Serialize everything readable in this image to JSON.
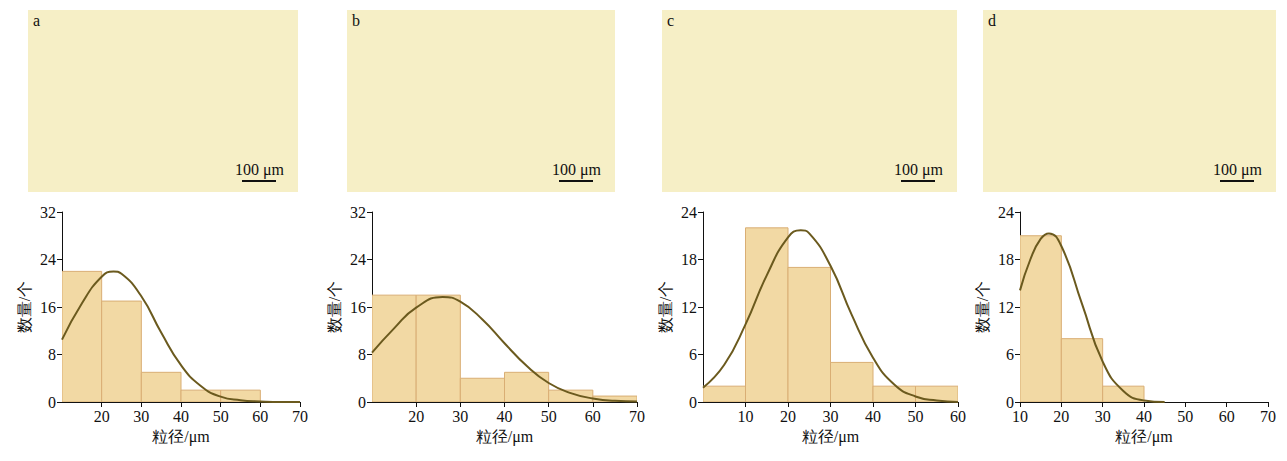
{
  "micrographs": [
    {
      "label": "a",
      "scale_bar": "100 μm"
    },
    {
      "label": "b",
      "scale_bar": "100 μm"
    },
    {
      "label": "c",
      "scale_bar": "100 μm"
    },
    {
      "label": "d",
      "scale_bar": "100 μm"
    }
  ],
  "chart_data": [
    {
      "type": "histogram",
      "xlabel": "粒径/μm",
      "ylabel": "数量/个",
      "color": "#f2d9a4",
      "grid": false,
      "bins": [
        10,
        20,
        30,
        40,
        50,
        60
      ],
      "counts": [
        22,
        17,
        5,
        2,
        2
      ],
      "xlim": [
        10,
        70
      ],
      "xticks": [
        20,
        30,
        40,
        50,
        60,
        70
      ],
      "ylim": [
        0,
        32
      ],
      "yticks": [
        0,
        8,
        16,
        24,
        32
      ],
      "fit": {
        "color": "#6b5a1e",
        "x": [
          10,
          15,
          20,
          23,
          25,
          30,
          35,
          40,
          45,
          50,
          55,
          60,
          65,
          70
        ],
        "y": [
          10.5,
          16.6,
          21.1,
          22.0,
          21.6,
          17.8,
          11.7,
          6.2,
          2.7,
          0.9,
          0.3,
          0.1,
          0.0,
          0.0
        ]
      }
    },
    {
      "type": "histogram",
      "xlabel": "粒径/μm",
      "ylabel": "数量/个",
      "color": "#f2d9a4",
      "grid": false,
      "bins": [
        10,
        20,
        30,
        40,
        50,
        60,
        70
      ],
      "counts": [
        18,
        18,
        4,
        5,
        2,
        1
      ],
      "xlim": [
        10,
        70
      ],
      "xticks": [
        20,
        30,
        40,
        50,
        60,
        70
      ],
      "ylim": [
        0,
        32
      ],
      "yticks": [
        0,
        8,
        16,
        24,
        32
      ],
      "fit": {
        "color": "#6b5a1e",
        "x": [
          10,
          15,
          20,
          26,
          30,
          35,
          40,
          45,
          50,
          55,
          60,
          65,
          70
        ],
        "y": [
          8.3,
          12.4,
          15.9,
          17.7,
          16.9,
          13.9,
          9.9,
          6.1,
          3.2,
          1.5,
          0.6,
          0.2,
          0.1
        ]
      }
    },
    {
      "type": "histogram",
      "xlabel": "粒径/μm",
      "ylabel": "数量/个",
      "color": "#f2d9a4",
      "grid": false,
      "bins": [
        0,
        10,
        20,
        30,
        40,
        50,
        60
      ],
      "counts": [
        2,
        22,
        17,
        5,
        2,
        2
      ],
      "xlim": [
        0,
        60
      ],
      "xticks": [
        10,
        20,
        30,
        40,
        50,
        60
      ],
      "ylim": [
        0,
        24
      ],
      "yticks": [
        0,
        6,
        12,
        18,
        24
      ],
      "fit": {
        "color": "#6b5a1e",
        "x": [
          0,
          5,
          10,
          15,
          20,
          23,
          25,
          30,
          35,
          40,
          45,
          50,
          55,
          60
        ],
        "y": [
          1.8,
          4.7,
          9.8,
          16.0,
          20.8,
          21.7,
          21.3,
          17.2,
          11.0,
          5.6,
          2.2,
          0.7,
          0.2,
          0.0
        ]
      }
    },
    {
      "type": "histogram",
      "xlabel": "粒径/μm",
      "ylabel": "数量/个",
      "color": "#f2d9a4",
      "grid": false,
      "bins": [
        10,
        20,
        30,
        40
      ],
      "counts": [
        21,
        8,
        2
      ],
      "xlim": [
        10,
        70
      ],
      "xticks": [
        10,
        20,
        30,
        40,
        50,
        60,
        70
      ],
      "ylim": [
        0,
        24
      ],
      "yticks": [
        0,
        6,
        12,
        18,
        24
      ],
      "fit": {
        "color": "#6b5a1e",
        "x": [
          10,
          12.5,
          15,
          17,
          20,
          25,
          30,
          35,
          40,
          45
        ],
        "y": [
          14.1,
          18.0,
          20.6,
          21.3,
          19.7,
          12.4,
          5.1,
          1.4,
          0.2,
          0.0
        ]
      }
    }
  ]
}
